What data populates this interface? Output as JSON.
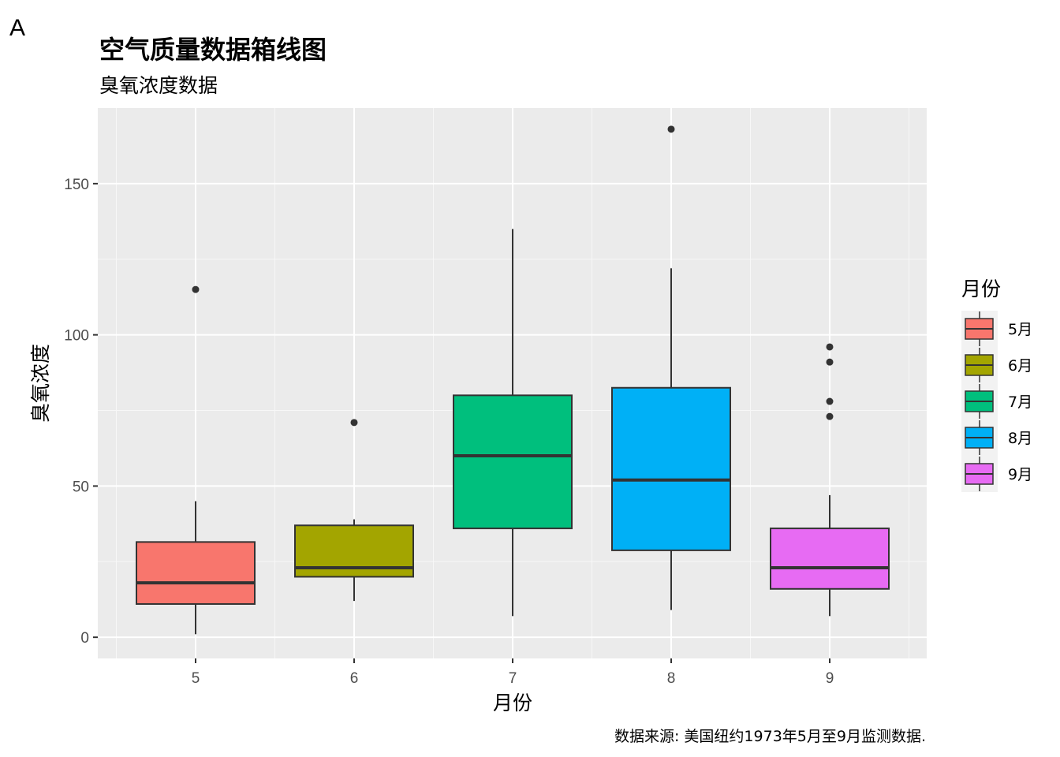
{
  "tag": "A",
  "chart_data": {
    "type": "boxplot",
    "title": "空气质量数据箱线图",
    "subtitle": "臭氧浓度数据",
    "xlabel": "月份",
    "ylabel": "臭氧浓度",
    "caption": "数据来源: 美国纽约1973年5月至9月监测数据.",
    "ylim": [
      -7,
      175
    ],
    "yticks": [
      0,
      50,
      100,
      150
    ],
    "ytick_labels": [
      "0",
      "50",
      "100",
      "150"
    ],
    "categories": [
      "5",
      "6",
      "7",
      "8",
      "9"
    ],
    "grid": true,
    "legend": {
      "title": "月份",
      "placement": "right",
      "labels": [
        "5月",
        "6月",
        "7月",
        "8月",
        "9月"
      ]
    },
    "series": [
      {
        "category": "5",
        "color": "#F8766D",
        "whisker_low": 1,
        "q1": 11,
        "median": 18,
        "q3": 31.5,
        "whisker_high": 45,
        "outliers": [
          115
        ]
      },
      {
        "category": "6",
        "color": "#A3A500",
        "whisker_low": 12,
        "q1": 20,
        "median": 23,
        "q3": 37,
        "whisker_high": 39,
        "outliers": [
          71
        ]
      },
      {
        "category": "7",
        "color": "#00BF7D",
        "whisker_low": 7,
        "q1": 36,
        "median": 60,
        "q3": 80,
        "whisker_high": 135,
        "outliers": []
      },
      {
        "category": "8",
        "color": "#00B0F6",
        "whisker_low": 9,
        "q1": 28.75,
        "median": 52,
        "q3": 82.5,
        "whisker_high": 122,
        "outliers": [
          168
        ]
      },
      {
        "category": "9",
        "color": "#E76BF3",
        "whisker_low": 7,
        "q1": 16,
        "median": 23,
        "q3": 36,
        "whisker_high": 47,
        "outliers": [
          73,
          78,
          91,
          96
        ]
      }
    ]
  }
}
